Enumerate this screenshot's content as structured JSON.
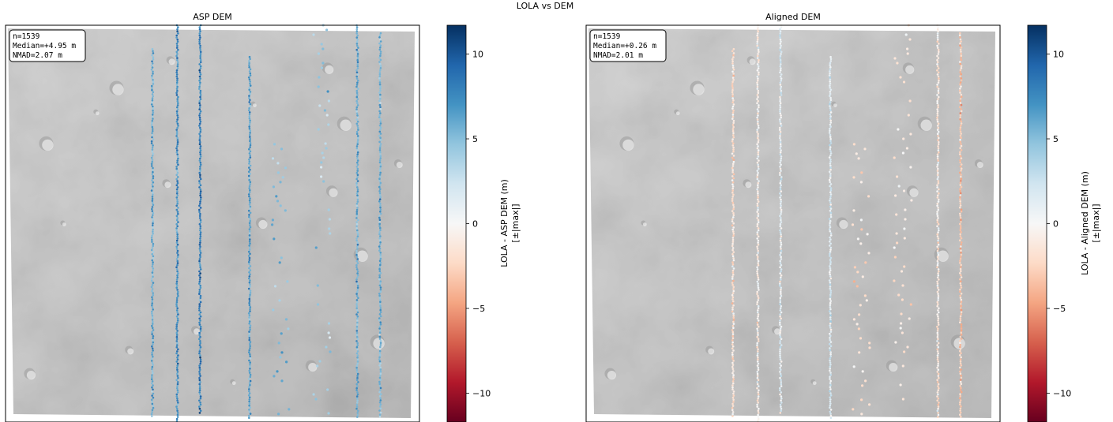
{
  "figure": {
    "suptitle": "LOLA vs DEM"
  },
  "chart_data": [
    {
      "type": "scatter",
      "title": "ASP DEM",
      "stats": [
        "n=1539",
        "Median=+4.95 m",
        "NMAD=2.07 m"
      ],
      "colorbar": {
        "label": "LOLA - ASP DEM (m)",
        "sublabel": "[±|max|]",
        "range": [
          -11.7,
          11.7
        ],
        "ticks": [
          10,
          5,
          0,
          -5,
          -10
        ],
        "tick_labels": [
          "10",
          "5",
          "0",
          "−5",
          "−10"
        ],
        "colormap": "RdBu",
        "colors": [
          "#67001f",
          "#b2182b",
          "#d6604d",
          "#f4a582",
          "#fddbc7",
          "#f7f7f7",
          "#d1e5f0",
          "#92c5de",
          "#4393c3",
          "#2166ac",
          "#053061"
        ]
      },
      "tracks": [
        {
          "x": 0.355,
          "y": [
            0.06,
            0.99
          ],
          "median": 6.0
        },
        {
          "x": 0.415,
          "y": [
            0.0,
            1.0
          ],
          "median": 7.5
        },
        {
          "x": 0.47,
          "y": [
            0.0,
            0.98
          ],
          "median": 8.0
        },
        {
          "x": 0.59,
          "y": [
            0.08,
            0.99
          ],
          "median": 6.5
        },
        {
          "x": 0.665,
          "y": [
            0.3,
            0.99
          ],
          "median": 5.0
        },
        {
          "x": 0.765,
          "y": [
            0.0,
            0.98
          ],
          "median": 4.0
        },
        {
          "x": 0.85,
          "y": [
            0.0,
            0.99
          ],
          "median": 6.0
        },
        {
          "x": 0.905,
          "y": [
            0.02,
            0.99
          ],
          "median": 5.5
        }
      ]
    },
    {
      "type": "scatter",
      "title": "Aligned DEM",
      "stats": [
        "n=1539",
        "Median=+0.26 m",
        "NMAD=2.01 m"
      ],
      "colorbar": {
        "label": "LOLA - Aligned DEM (m)",
        "sublabel": "[±|max|]",
        "range": [
          -11.7,
          11.7
        ],
        "ticks": [
          10,
          5,
          0,
          -5,
          -10
        ],
        "tick_labels": [
          "10",
          "5",
          "0",
          "−5",
          "−10"
        ],
        "colormap": "RdBu",
        "colors": [
          "#67001f",
          "#b2182b",
          "#d6604d",
          "#f4a582",
          "#fddbc7",
          "#f7f7f7",
          "#d1e5f0",
          "#92c5de",
          "#4393c3",
          "#2166ac",
          "#053061"
        ]
      },
      "tracks": [
        {
          "x": 0.355,
          "y": [
            0.06,
            0.99
          ],
          "median": -1.5
        },
        {
          "x": 0.415,
          "y": [
            0.0,
            1.0
          ],
          "median": -0.5
        },
        {
          "x": 0.47,
          "y": [
            0.0,
            0.98
          ],
          "median": 1.0
        },
        {
          "x": 0.59,
          "y": [
            0.08,
            0.99
          ],
          "median": 1.5
        },
        {
          "x": 0.665,
          "y": [
            0.3,
            0.99
          ],
          "median": -2.0
        },
        {
          "x": 0.765,
          "y": [
            0.0,
            0.98
          ],
          "median": -1.5
        },
        {
          "x": 0.85,
          "y": [
            0.0,
            0.99
          ],
          "median": -1.0
        },
        {
          "x": 0.905,
          "y": [
            0.02,
            0.99
          ],
          "median": -3.0
        }
      ]
    }
  ]
}
